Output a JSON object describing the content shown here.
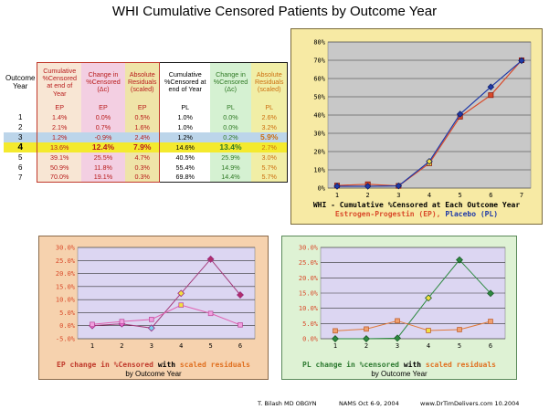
{
  "title": "WHI Cumulative Censored Patients by Outcome Year",
  "table": {
    "headers": [
      "Outcome Year",
      "Cumulative %Censored at end of Year",
      "Change in %Censored (Δc)",
      "Absolute Residuals (scaled)",
      "Cumulative %Censored at end of Year",
      "Change in %Censored (Δc)",
      "Absolute Residuals (scaled)"
    ],
    "groups": [
      "EP",
      "EP",
      "EP",
      "PL",
      "PL",
      "PL"
    ],
    "rows": [
      [
        "1",
        "1.4%",
        "0.0%",
        "0.5%",
        "1.0%",
        "0.0%",
        "2.6%"
      ],
      [
        "2",
        "2.1%",
        "0.7%",
        "1.6%",
        "1.0%",
        "0.0%",
        "3.2%"
      ],
      [
        "3",
        "1.2%",
        "-0.9%",
        "2.4%",
        "1.2%",
        "0.2%",
        "5.9%"
      ],
      [
        "4",
        "13.6%",
        "12.4%",
        "7.9%",
        "14.6%",
        "13.4%",
        "2.7%"
      ],
      [
        "5",
        "39.1%",
        "25.5%",
        "4.7%",
        "40.5%",
        "25.9%",
        "3.0%"
      ],
      [
        "6",
        "50.9%",
        "11.8%",
        "0.3%",
        "55.4%",
        "14.9%",
        "5.7%"
      ],
      [
        "7",
        "70.0%",
        "19.1%",
        "0.3%",
        "69.8%",
        "14.4%",
        "5.7%"
      ]
    ]
  },
  "colors": {
    "ep": "#d94a2a",
    "pl": "#1f3aa8",
    "ep_change": "#cc2f7a",
    "ep_change_marker": "#e86ad0",
    "ep_resid": "#e86aa0",
    "ep_resid_marker": "#f0a0e0",
    "pl_change": "#2d8a40",
    "pl_resid": "#e06a2a",
    "highlight": "#f2e040",
    "pl_change_marker": "#2d8a40"
  },
  "captions": {
    "chart1_line1": "WHI - Cumulative %Censored at Each Outcome Year",
    "chart1_ep": "Estrogen-Progestin (EP),",
    "chart1_pl": "Placebo (PL)",
    "chart2_a": "EP change in %Censored",
    "chart2_with": "with",
    "chart2_b": "scaled residuals",
    "chart2_sub": "by Outcome Year",
    "chart3_a": "PL change in %censored",
    "chart3_with": "with",
    "chart3_b": "scaled residuals",
    "chart3_sub": "by Outcome Year"
  },
  "footer": {
    "author": "T. Bilash MD OBGYN",
    "meeting": "NAMS Oct 6-9, 2004",
    "site": "www.DrTimDelivers.com 10.2004"
  },
  "chart_data": [
    {
      "type": "line",
      "x": [
        1,
        2,
        3,
        4,
        5,
        6,
        7
      ],
      "ylim": [
        0,
        80
      ],
      "yticks": [
        "0%",
        "10%",
        "20%",
        "30%",
        "40%",
        "50%",
        "60%",
        "70%",
        "80%"
      ],
      "series": [
        {
          "name": "Estrogen-Progestin (EP)",
          "values": [
            1.4,
            2.1,
            1.2,
            13.6,
            39.1,
            50.9,
            70.0
          ]
        },
        {
          "name": "Placebo (PL)",
          "values": [
            1.0,
            1.0,
            1.2,
            14.6,
            40.5,
            55.4,
            69.8
          ]
        }
      ],
      "grid": true
    },
    {
      "type": "line",
      "x": [
        1,
        2,
        3,
        4,
        5,
        6
      ],
      "ylim": [
        -5,
        30
      ],
      "yticks": [
        "-5.0%",
        "0.0%",
        "5.0%",
        "10.0%",
        "15.0%",
        "20.0%",
        "25.0%",
        "30.0%"
      ],
      "series": [
        {
          "name": "EP change in %Censored",
          "values": [
            0.0,
            0.7,
            -0.9,
            12.4,
            25.5,
            11.8
          ]
        },
        {
          "name": "scaled residuals",
          "values": [
            0.5,
            1.6,
            2.4,
            7.9,
            4.7,
            0.3
          ]
        }
      ],
      "grid": true
    },
    {
      "type": "line",
      "x": [
        1,
        2,
        3,
        4,
        5,
        6
      ],
      "ylim": [
        0,
        30
      ],
      "yticks": [
        "0.0%",
        "5.0%",
        "10.0%",
        "15.0%",
        "20.0%",
        "25.0%",
        "30.0%"
      ],
      "series": [
        {
          "name": "PL change in %censored",
          "values": [
            0.0,
            0.0,
            0.2,
            13.4,
            25.9,
            14.9
          ]
        },
        {
          "name": "scaled residuals",
          "values": [
            2.6,
            3.2,
            5.9,
            2.7,
            3.0,
            5.7
          ]
        }
      ],
      "grid": true
    }
  ]
}
